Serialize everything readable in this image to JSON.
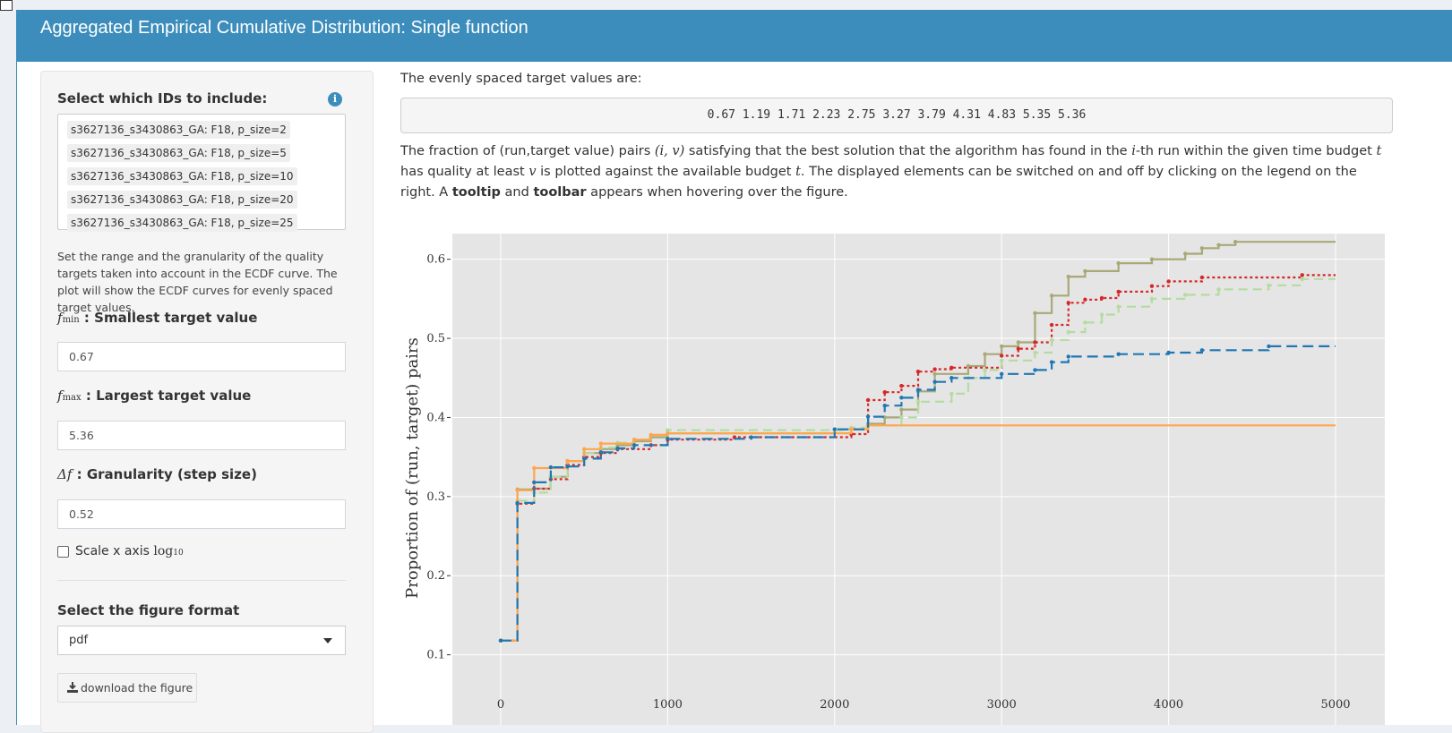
{
  "header": {
    "title": "Aggregated Empirical Cumulative Distribution: Single function"
  },
  "sidebar": {
    "ids_label": "Select which IDs to include:",
    "info_icon": "info-icon",
    "ids": [
      "s3627136_s3430863_GA: F18, p_size=2",
      "s3627136_s3430863_GA: F18, p_size=5",
      "s3627136_s3430863_GA: F18, p_size=10",
      "s3627136_s3430863_GA: F18, p_size=20",
      "s3627136_s3430863_GA: F18, p_size=25"
    ],
    "range_help": "Set the range and the granularity of the quality targets taken into account in the ECDF curve. The plot will show the ECDF curves for evenly spaced target values.",
    "fmin_symbol": "f",
    "fmin_sub": "min",
    "fmin_label": ": Smallest target value",
    "fmin_value": "0.67",
    "fmax_symbol": "f",
    "fmax_sub": "max",
    "fmax_label": ": Largest target value",
    "fmax_value": "5.36",
    "step_symbol": "Δf",
    "step_label": ": Granularity (step size)",
    "step_value": "0.52",
    "scale_label": "Scale x axis ",
    "scale_math": "log",
    "scale_sub": "10",
    "format_label": "Select the figure format",
    "format_value": "pdf",
    "download_label": "download the figure"
  },
  "main": {
    "targets_intro": "The evenly spaced target values are:",
    "targets_values": "0.67 1.19 1.71 2.23 2.75 3.27 3.79 4.31 4.83 5.35 5.36",
    "desc_1": "The fraction of (run,target value) pairs ",
    "desc_math_1": "(i, v)",
    "desc_2": " satisfying that the best solution that the algorithm has found in the ",
    "desc_math_2": "i",
    "desc_3": "-th run within the given time budget ",
    "desc_math_3": "t",
    "desc_4": " has quality at least ",
    "desc_math_4": "v",
    "desc_5": " is plotted against the available budget ",
    "desc_math_5": "t",
    "desc_6": ". The displayed elements can be switched on and off by clicking on the legend on the right. A ",
    "desc_bold_1": "tooltip",
    "desc_7": " and ",
    "desc_bold_2": "toolbar",
    "desc_8": " appears when hovering over the figure."
  },
  "chart_data": {
    "type": "line",
    "ylabel": "Proportion of (run, target) pairs",
    "xlabel": "",
    "xlim": [
      0,
      5000
    ],
    "ylim": [
      0.1,
      0.62
    ],
    "x_ticks": [
      0,
      1000,
      2000,
      3000,
      4000,
      5000
    ],
    "y_ticks": [
      0.1,
      0.2,
      0.3,
      0.4,
      0.5,
      0.6
    ],
    "grid": true,
    "series": [
      {
        "color": "#a8a878",
        "dash": "solid",
        "points": [
          [
            0,
            0.118
          ],
          [
            100,
            0.118
          ],
          [
            100,
            0.309
          ],
          [
            200,
            0.309
          ],
          [
            200,
            0.31
          ],
          [
            300,
            0.31
          ],
          [
            300,
            0.325
          ],
          [
            400,
            0.325
          ],
          [
            400,
            0.345
          ],
          [
            500,
            0.345
          ],
          [
            500,
            0.355
          ],
          [
            600,
            0.355
          ],
          [
            600,
            0.36
          ],
          [
            700,
            0.36
          ],
          [
            700,
            0.365
          ],
          [
            800,
            0.365
          ],
          [
            800,
            0.37
          ],
          [
            900,
            0.37
          ],
          [
            900,
            0.375
          ],
          [
            1000,
            0.375
          ],
          [
            1000,
            0.38
          ],
          [
            2000,
            0.38
          ],
          [
            2000,
            0.385
          ],
          [
            2200,
            0.385
          ],
          [
            2200,
            0.392
          ],
          [
            2300,
            0.392
          ],
          [
            2300,
            0.4
          ],
          [
            2400,
            0.4
          ],
          [
            2400,
            0.41
          ],
          [
            2500,
            0.41
          ],
          [
            2500,
            0.433
          ],
          [
            2600,
            0.433
          ],
          [
            2600,
            0.455
          ],
          [
            2800,
            0.455
          ],
          [
            2800,
            0.465
          ],
          [
            2900,
            0.465
          ],
          [
            2900,
            0.48
          ],
          [
            3000,
            0.48
          ],
          [
            3000,
            0.49
          ],
          [
            3100,
            0.49
          ],
          [
            3100,
            0.495
          ],
          [
            3200,
            0.495
          ],
          [
            3200,
            0.532
          ],
          [
            3300,
            0.532
          ],
          [
            3300,
            0.554
          ],
          [
            3400,
            0.554
          ],
          [
            3400,
            0.578
          ],
          [
            3500,
            0.578
          ],
          [
            3500,
            0.585
          ],
          [
            3700,
            0.585
          ],
          [
            3700,
            0.595
          ],
          [
            3900,
            0.595
          ],
          [
            3900,
            0.6
          ],
          [
            4100,
            0.6
          ],
          [
            4100,
            0.607
          ],
          [
            4200,
            0.607
          ],
          [
            4200,
            0.614
          ],
          [
            4300,
            0.614
          ],
          [
            4300,
            0.618
          ],
          [
            4400,
            0.618
          ],
          [
            4400,
            0.622
          ],
          [
            5000,
            0.622
          ]
        ]
      },
      {
        "color": "#d62728",
        "dash": "3,3",
        "points": [
          [
            0,
            0.118
          ],
          [
            100,
            0.118
          ],
          [
            100,
            0.291
          ],
          [
            200,
            0.291
          ],
          [
            200,
            0.31
          ],
          [
            300,
            0.31
          ],
          [
            300,
            0.322
          ],
          [
            400,
            0.322
          ],
          [
            400,
            0.34
          ],
          [
            500,
            0.34
          ],
          [
            500,
            0.35
          ],
          [
            600,
            0.35
          ],
          [
            600,
            0.355
          ],
          [
            700,
            0.355
          ],
          [
            700,
            0.36
          ],
          [
            900,
            0.36
          ],
          [
            900,
            0.365
          ],
          [
            1000,
            0.365
          ],
          [
            1000,
            0.372
          ],
          [
            1400,
            0.372
          ],
          [
            1400,
            0.375
          ],
          [
            2100,
            0.375
          ],
          [
            2100,
            0.379
          ],
          [
            2200,
            0.379
          ],
          [
            2200,
            0.422
          ],
          [
            2300,
            0.422
          ],
          [
            2300,
            0.432
          ],
          [
            2400,
            0.432
          ],
          [
            2400,
            0.44
          ],
          [
            2500,
            0.44
          ],
          [
            2500,
            0.458
          ],
          [
            2600,
            0.458
          ],
          [
            2600,
            0.461
          ],
          [
            2700,
            0.461
          ],
          [
            2700,
            0.463
          ],
          [
            3000,
            0.463
          ],
          [
            3000,
            0.478
          ],
          [
            3100,
            0.478
          ],
          [
            3100,
            0.487
          ],
          [
            3200,
            0.487
          ],
          [
            3200,
            0.495
          ],
          [
            3300,
            0.495
          ],
          [
            3300,
            0.517
          ],
          [
            3400,
            0.517
          ],
          [
            3400,
            0.545
          ],
          [
            3500,
            0.545
          ],
          [
            3500,
            0.549
          ],
          [
            3600,
            0.549
          ],
          [
            3600,
            0.551
          ],
          [
            3700,
            0.551
          ],
          [
            3700,
            0.559
          ],
          [
            3900,
            0.559
          ],
          [
            3900,
            0.566
          ],
          [
            4000,
            0.566
          ],
          [
            4000,
            0.572
          ],
          [
            4200,
            0.572
          ],
          [
            4200,
            0.577
          ],
          [
            4800,
            0.577
          ],
          [
            4800,
            0.58
          ],
          [
            5000,
            0.58
          ]
        ]
      },
      {
        "color": "#b5dba0",
        "dash": "10,6",
        "points": [
          [
            0,
            0.118
          ],
          [
            100,
            0.118
          ],
          [
            100,
            0.295
          ],
          [
            200,
            0.295
          ],
          [
            200,
            0.305
          ],
          [
            300,
            0.305
          ],
          [
            300,
            0.325
          ],
          [
            400,
            0.325
          ],
          [
            400,
            0.345
          ],
          [
            500,
            0.345
          ],
          [
            500,
            0.355
          ],
          [
            600,
            0.355
          ],
          [
            600,
            0.362
          ],
          [
            700,
            0.362
          ],
          [
            700,
            0.368
          ],
          [
            800,
            0.368
          ],
          [
            800,
            0.372
          ],
          [
            900,
            0.372
          ],
          [
            900,
            0.378
          ],
          [
            1000,
            0.378
          ],
          [
            1000,
            0.384
          ],
          [
            2100,
            0.384
          ],
          [
            2100,
            0.387
          ],
          [
            2200,
            0.387
          ],
          [
            2200,
            0.39
          ],
          [
            2400,
            0.39
          ],
          [
            2400,
            0.4
          ],
          [
            2500,
            0.4
          ],
          [
            2500,
            0.42
          ],
          [
            2700,
            0.42
          ],
          [
            2700,
            0.43
          ],
          [
            2800,
            0.43
          ],
          [
            2800,
            0.45
          ],
          [
            2900,
            0.45
          ],
          [
            2900,
            0.46
          ],
          [
            3000,
            0.46
          ],
          [
            3000,
            0.472
          ],
          [
            3200,
            0.472
          ],
          [
            3200,
            0.482
          ],
          [
            3300,
            0.482
          ],
          [
            3300,
            0.498
          ],
          [
            3400,
            0.498
          ],
          [
            3400,
            0.508
          ],
          [
            3500,
            0.508
          ],
          [
            3500,
            0.52
          ],
          [
            3600,
            0.52
          ],
          [
            3600,
            0.53
          ],
          [
            3700,
            0.53
          ],
          [
            3700,
            0.54
          ],
          [
            3900,
            0.54
          ],
          [
            3900,
            0.55
          ],
          [
            4100,
            0.55
          ],
          [
            4100,
            0.555
          ],
          [
            4300,
            0.555
          ],
          [
            4300,
            0.562
          ],
          [
            4600,
            0.562
          ],
          [
            4600,
            0.567
          ],
          [
            4800,
            0.567
          ],
          [
            4800,
            0.575
          ],
          [
            5000,
            0.575
          ]
        ]
      },
      {
        "color": "#ffa64d",
        "dash": "solid",
        "points": [
          [
            0,
            0.118
          ],
          [
            100,
            0.118
          ],
          [
            100,
            0.308
          ],
          [
            200,
            0.308
          ],
          [
            200,
            0.336
          ],
          [
            400,
            0.336
          ],
          [
            400,
            0.345
          ],
          [
            500,
            0.345
          ],
          [
            500,
            0.36
          ],
          [
            600,
            0.36
          ],
          [
            600,
            0.367
          ],
          [
            800,
            0.367
          ],
          [
            800,
            0.372
          ],
          [
            900,
            0.372
          ],
          [
            900,
            0.378
          ],
          [
            1000,
            0.378
          ],
          [
            1000,
            0.38
          ],
          [
            2100,
            0.38
          ],
          [
            2100,
            0.385
          ],
          [
            2200,
            0.385
          ],
          [
            2200,
            0.39
          ],
          [
            5000,
            0.39
          ]
        ]
      },
      {
        "color": "#1f77b4",
        "dash": "12,6",
        "points": [
          [
            0,
            0.118
          ],
          [
            100,
            0.118
          ],
          [
            100,
            0.292
          ],
          [
            200,
            0.292
          ],
          [
            200,
            0.318
          ],
          [
            300,
            0.318
          ],
          [
            300,
            0.337
          ],
          [
            400,
            0.337
          ],
          [
            400,
            0.338
          ],
          [
            500,
            0.338
          ],
          [
            500,
            0.348
          ],
          [
            600,
            0.348
          ],
          [
            600,
            0.356
          ],
          [
            700,
            0.356
          ],
          [
            700,
            0.361
          ],
          [
            800,
            0.361
          ],
          [
            800,
            0.365
          ],
          [
            1000,
            0.365
          ],
          [
            1000,
            0.373
          ],
          [
            1500,
            0.373
          ],
          [
            1500,
            0.375
          ],
          [
            2000,
            0.375
          ],
          [
            2000,
            0.385
          ],
          [
            2200,
            0.385
          ],
          [
            2200,
            0.401
          ],
          [
            2300,
            0.401
          ],
          [
            2300,
            0.415
          ],
          [
            2400,
            0.415
          ],
          [
            2400,
            0.425
          ],
          [
            2500,
            0.425
          ],
          [
            2500,
            0.435
          ],
          [
            2600,
            0.435
          ],
          [
            2600,
            0.445
          ],
          [
            2700,
            0.445
          ],
          [
            2700,
            0.45
          ],
          [
            3000,
            0.45
          ],
          [
            3000,
            0.455
          ],
          [
            3200,
            0.455
          ],
          [
            3200,
            0.46
          ],
          [
            3300,
            0.46
          ],
          [
            3300,
            0.47
          ],
          [
            3400,
            0.47
          ],
          [
            3400,
            0.477
          ],
          [
            3700,
            0.477
          ],
          [
            3700,
            0.48
          ],
          [
            4000,
            0.48
          ],
          [
            4000,
            0.482
          ],
          [
            4200,
            0.482
          ],
          [
            4200,
            0.485
          ],
          [
            4600,
            0.485
          ],
          [
            4600,
            0.49
          ],
          [
            5000,
            0.49
          ]
        ]
      }
    ]
  }
}
